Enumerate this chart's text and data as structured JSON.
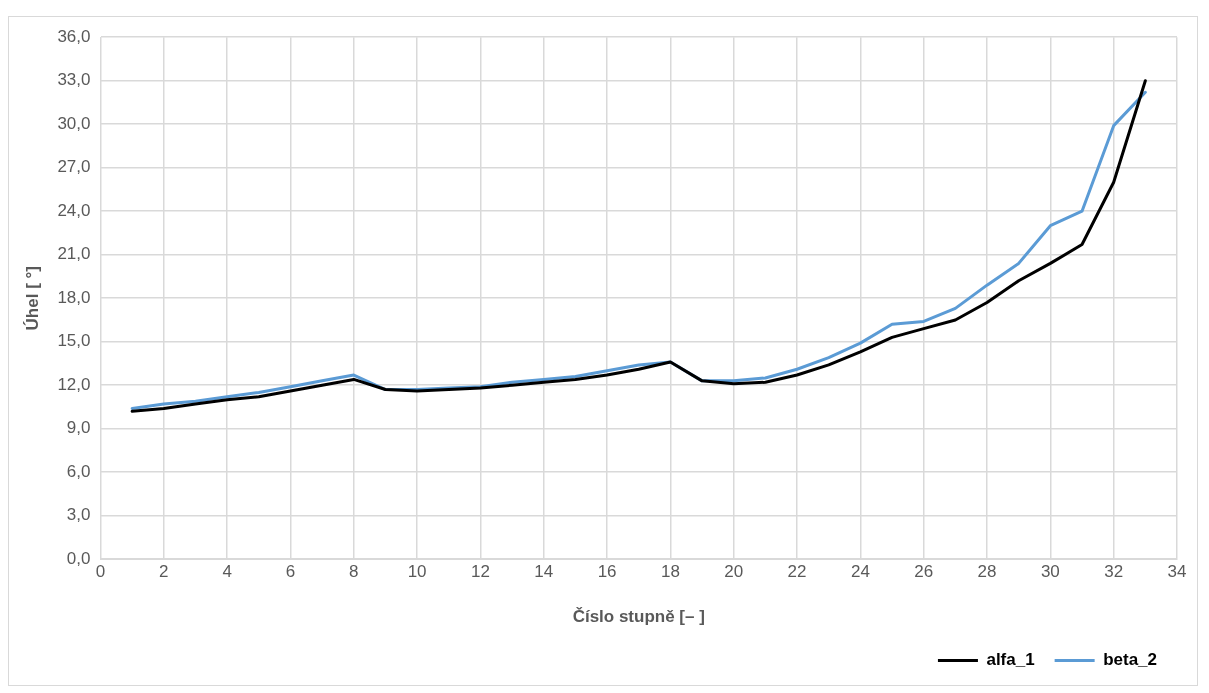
{
  "chart_data": {
    "type": "line",
    "xlabel": "Číslo stupně [– ]",
    "ylabel": "Úhel [ °]",
    "x": [
      1,
      2,
      3,
      4,
      5,
      6,
      7,
      8,
      9,
      10,
      11,
      12,
      13,
      14,
      15,
      16,
      17,
      18,
      19,
      20,
      21,
      22,
      23,
      24,
      25,
      26,
      27,
      28,
      29,
      30,
      31,
      32,
      33
    ],
    "series": [
      {
        "name": "alfa_1",
        "color": "#000000",
        "values": [
          10.2,
          10.4,
          10.7,
          11.0,
          11.2,
          11.6,
          12.0,
          12.4,
          11.7,
          11.6,
          11.7,
          11.8,
          12.0,
          12.2,
          12.4,
          12.7,
          13.1,
          13.6,
          12.3,
          12.1,
          12.2,
          12.7,
          13.4,
          14.3,
          15.3,
          15.9,
          16.5,
          17.7,
          19.2,
          20.4,
          21.7,
          26.0,
          33.0
        ]
      },
      {
        "name": "beta_2",
        "color": "#5b9bd5",
        "values": [
          10.4,
          10.7,
          10.9,
          11.2,
          11.5,
          11.9,
          12.3,
          12.7,
          11.7,
          11.7,
          11.8,
          11.9,
          12.2,
          12.4,
          12.6,
          13.0,
          13.4,
          13.6,
          12.3,
          12.3,
          12.5,
          13.1,
          13.9,
          14.9,
          16.2,
          16.4,
          17.3,
          18.9,
          20.4,
          23.0,
          24.0,
          29.9,
          32.2
        ]
      }
    ],
    "xlim": [
      0,
      34
    ],
    "xticks": [
      0,
      2,
      4,
      6,
      8,
      10,
      12,
      14,
      16,
      18,
      20,
      22,
      24,
      26,
      28,
      30,
      32,
      34
    ],
    "ylim": [
      0,
      36
    ],
    "yticks": [
      {
        "value": 0,
        "label": "0,0"
      },
      {
        "value": 3,
        "label": "3,0"
      },
      {
        "value": 6,
        "label": "6,0"
      },
      {
        "value": 9,
        "label": "9,0"
      },
      {
        "value": 12,
        "label": "12,0"
      },
      {
        "value": 15,
        "label": "15,0"
      },
      {
        "value": 18,
        "label": "18,0"
      },
      {
        "value": 21,
        "label": "21,0"
      },
      {
        "value": 24,
        "label": "24,0"
      },
      {
        "value": 27,
        "label": "27,0"
      },
      {
        "value": 30,
        "label": "30,0"
      },
      {
        "value": 33,
        "label": "33,0"
      },
      {
        "value": 36,
        "label": "36,0"
      }
    ],
    "grid": true,
    "legend": "bottom right",
    "marker": "none",
    "line_style": "solid"
  }
}
